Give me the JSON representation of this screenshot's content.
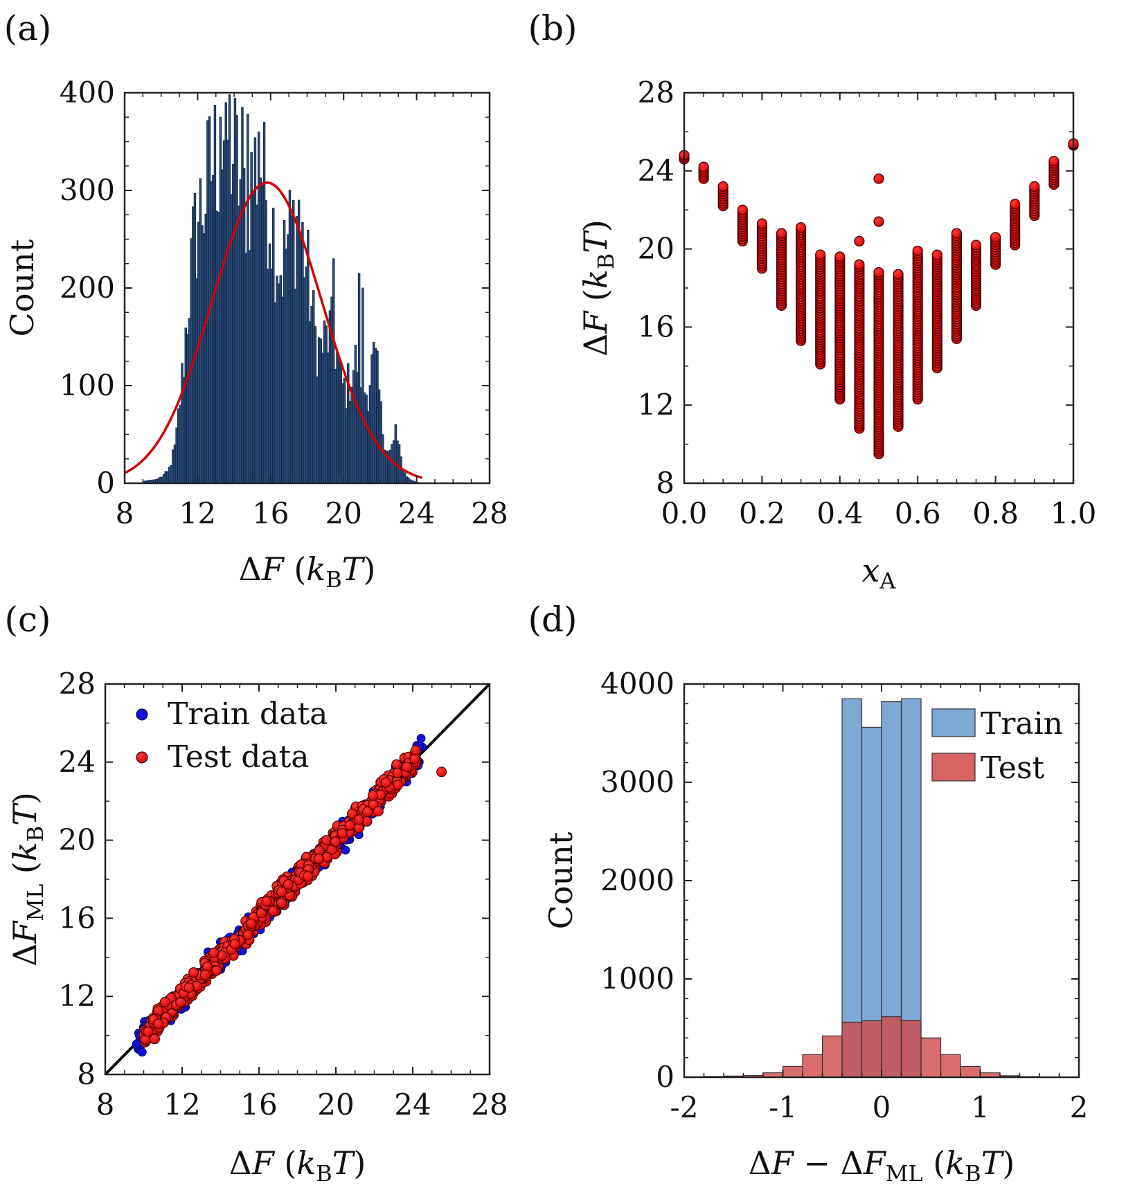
{
  "chart_data": [
    {
      "panel": "(a)",
      "type": "histogram",
      "xlabel": "ΔF (kBT)",
      "ylabel": "Count",
      "xlim": [
        8,
        28
      ],
      "ylim": [
        0,
        400
      ],
      "xticks": [
        "8",
        "12",
        "16",
        "20",
        "24",
        "28"
      ],
      "yticks": [
        "0",
        "100",
        "200",
        "300",
        "400"
      ],
      "bin_width": 0.1,
      "fit": {
        "type": "gaussian",
        "mu": 15.8,
        "sigma": 3.0,
        "peak": 308
      },
      "envelope": [
        [
          9.0,
          2
        ],
        [
          9.8,
          4
        ],
        [
          10.4,
          12
        ],
        [
          10.8,
          40
        ],
        [
          11.2,
          120
        ],
        [
          11.5,
          195
        ],
        [
          11.8,
          255
        ],
        [
          12.1,
          285
        ],
        [
          12.4,
          300
        ],
        [
          12.7,
          330
        ],
        [
          13.0,
          345
        ],
        [
          13.3,
          350
        ],
        [
          13.6,
          372
        ],
        [
          13.9,
          352
        ],
        [
          14.2,
          330
        ],
        [
          14.5,
          300
        ],
        [
          14.8,
          308
        ],
        [
          15.1,
          328
        ],
        [
          15.4,
          345
        ],
        [
          15.7,
          315
        ],
        [
          16.0,
          285
        ],
        [
          16.3,
          250
        ],
        [
          16.6,
          225
        ],
        [
          16.9,
          255
        ],
        [
          17.2,
          270
        ],
        [
          17.5,
          275
        ],
        [
          17.8,
          250
        ],
        [
          18.1,
          210
        ],
        [
          18.4,
          160
        ],
        [
          18.7,
          140
        ],
        [
          19.0,
          150
        ],
        [
          19.3,
          160
        ],
        [
          19.6,
          140
        ],
        [
          19.9,
          102
        ],
        [
          20.2,
          100
        ],
        [
          20.5,
          120
        ],
        [
          20.8,
          132
        ],
        [
          21.1,
          102
        ],
        [
          21.3,
          95
        ],
        [
          21.5,
          120
        ],
        [
          21.7,
          130
        ],
        [
          21.9,
          105
        ],
        [
          22.1,
          62
        ],
        [
          22.3,
          42
        ],
        [
          22.5,
          30
        ],
        [
          22.7,
          40
        ],
        [
          22.9,
          45
        ],
        [
          23.1,
          30
        ],
        [
          23.3,
          12
        ],
        [
          23.6,
          4
        ],
        [
          24.0,
          1
        ],
        [
          24.4,
          0
        ]
      ],
      "spikes": [
        [
          13.2,
          375
        ],
        [
          13.5,
          390
        ],
        [
          13.7,
          398
        ],
        [
          14.4,
          385
        ],
        [
          14.7,
          378
        ],
        [
          15.3,
          360
        ],
        [
          15.6,
          370
        ],
        [
          17.5,
          290
        ],
        [
          19.5,
          230
        ],
        [
          20.9,
          215
        ],
        [
          21.1,
          200
        ],
        [
          22.9,
          60
        ]
      ],
      "bar_color": "#2b4d7d",
      "fit_color": "#d40000"
    },
    {
      "panel": "(b)",
      "type": "scatter",
      "xlabel": "xA",
      "ylabel": "ΔF (kBT)",
      "xlim": [
        0,
        1
      ],
      "ylim": [
        8,
        28
      ],
      "xticks": [
        "0.0",
        "0.2",
        "0.4",
        "0.6",
        "0.8",
        "1.0"
      ],
      "yticks": [
        "8",
        "12",
        "16",
        "20",
        "24",
        "28"
      ],
      "columns": [
        {
          "x": 0.0,
          "ymin": 24.6,
          "ymax": 24.8
        },
        {
          "x": 0.05,
          "ymin": 23.6,
          "ymax": 24.2
        },
        {
          "x": 0.1,
          "ymin": 22.2,
          "ymax": 23.2
        },
        {
          "x": 0.15,
          "ymin": 20.4,
          "ymax": 22.0
        },
        {
          "x": 0.2,
          "ymin": 19.0,
          "ymax": 21.3
        },
        {
          "x": 0.25,
          "ymin": 17.1,
          "ymax": 20.8
        },
        {
          "x": 0.3,
          "ymin": 15.3,
          "ymax": 21.1
        },
        {
          "x": 0.35,
          "ymin": 14.1,
          "ymax": 19.7
        },
        {
          "x": 0.4,
          "ymin": 12.3,
          "ymax": 19.6
        },
        {
          "x": 0.45,
          "ymin": 10.8,
          "ymax": 19.2
        },
        {
          "x": 0.5,
          "ymin": 9.5,
          "ymax": 18.8
        },
        {
          "x": 0.55,
          "ymin": 10.9,
          "ymax": 18.7
        },
        {
          "x": 0.6,
          "ymin": 12.3,
          "ymax": 19.9
        },
        {
          "x": 0.65,
          "ymin": 13.9,
          "ymax": 19.7
        },
        {
          "x": 0.7,
          "ymin": 15.4,
          "ymax": 20.8
        },
        {
          "x": 0.75,
          "ymin": 17.1,
          "ymax": 20.2
        },
        {
          "x": 0.8,
          "ymin": 19.2,
          "ymax": 20.6
        },
        {
          "x": 0.85,
          "ymin": 20.2,
          "ymax": 22.3
        },
        {
          "x": 0.9,
          "ymin": 21.7,
          "ymax": 23.2
        },
        {
          "x": 0.95,
          "ymin": 23.3,
          "ymax": 24.5
        },
        {
          "x": 1.0,
          "ymin": 25.3,
          "ymax": 25.4
        }
      ],
      "outliers": [
        {
          "x": 0.5,
          "y": 23.6
        },
        {
          "x": 0.5,
          "y": 21.4
        },
        {
          "x": 0.45,
          "y": 20.4
        }
      ],
      "marker_color": "#e00000"
    },
    {
      "panel": "(c)",
      "type": "scatter",
      "xlabel": "ΔF (kBT)",
      "ylabel": "ΔFML (kBT)",
      "xlim": [
        8,
        28
      ],
      "ylim": [
        8,
        28
      ],
      "xticks": [
        "8",
        "12",
        "16",
        "20",
        "24",
        "28"
      ],
      "yticks": [
        "8",
        "12",
        "16",
        "20",
        "24",
        "28"
      ],
      "identity_line": true,
      "train_range": [
        9.6,
        24.5
      ],
      "test_range": [
        10.0,
        24.2
      ],
      "extra_point": {
        "x": 25.5,
        "y": 23.5
      },
      "legend_position": "top-left",
      "series": [
        {
          "name": "Train data",
          "color": "#1010e0"
        },
        {
          "name": "Test data",
          "color": "#e00000"
        }
      ]
    },
    {
      "panel": "(d)",
      "type": "histogram",
      "xlabel": "ΔF − ΔFML (kBT)",
      "ylabel": "Count",
      "xlim": [
        -2,
        2
      ],
      "ylim": [
        0,
        4000
      ],
      "xticks": [
        "-2",
        "-1",
        "0",
        "1",
        "2"
      ],
      "yticks": [
        "0",
        "1000",
        "2000",
        "3000",
        "4000"
      ],
      "bin_edges": [
        -2.0,
        -1.8,
        -1.6,
        -1.4,
        -1.2,
        -1.0,
        -0.8,
        -0.6,
        -0.4,
        -0.2,
        0.0,
        0.2,
        0.4,
        0.6,
        0.8,
        1.0,
        1.2,
        1.4,
        1.6,
        1.8,
        2.0
      ],
      "legend_position": "top-right",
      "series": [
        {
          "name": "Train",
          "color": "#6699cc",
          "values": [
            0,
            0,
            0,
            0,
            0,
            0,
            0,
            0,
            3850,
            3560,
            3820,
            3850,
            0,
            0,
            0,
            0,
            0,
            0,
            0,
            0
          ]
        },
        {
          "name": "Test",
          "color": "#d04848",
          "values": [
            5,
            8,
            12,
            18,
            45,
            110,
            230,
            420,
            560,
            575,
            615,
            580,
            400,
            230,
            110,
            45,
            15,
            6,
            3,
            2
          ]
        }
      ]
    }
  ]
}
